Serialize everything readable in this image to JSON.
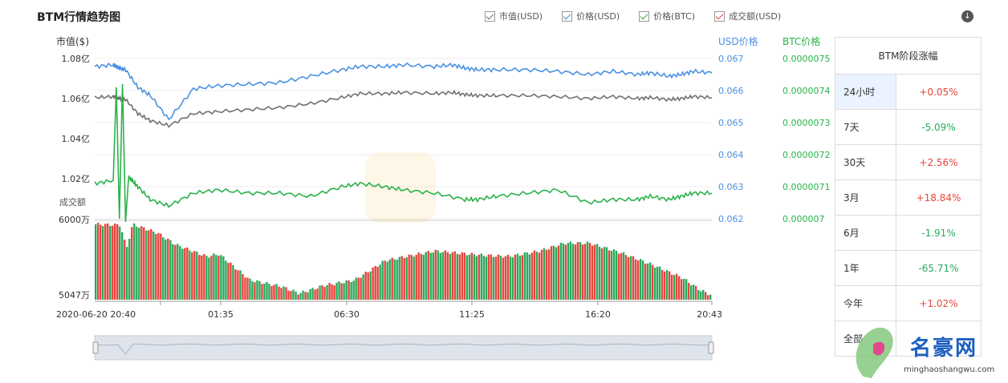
{
  "title": "BTM行情趋势图",
  "legend": [
    {
      "label": "市值(USD)",
      "color": "#707070"
    },
    {
      "label": "价格(USD)",
      "color": "#4a90e2"
    },
    {
      "label": "价格(BTC)",
      "color": "#2ab24a"
    },
    {
      "label": "成交额(USD)",
      "color": "#e7453b"
    }
  ],
  "download_icon": "arrow-down-circle-icon",
  "chart_data": {
    "type": "line",
    "axis_titles": {
      "left": "市值($)",
      "right_usd": "USD价格",
      "right_btc": "BTC价格",
      "volume": "成交额"
    },
    "left_ticks": [
      "1.08亿",
      "1.06亿",
      "1.04亿",
      "1.02亿"
    ],
    "usd_ticks": [
      "0.067",
      "0.066",
      "0.065",
      "0.064",
      "0.063",
      "0.062"
    ],
    "btc_ticks": [
      "0.0000075",
      "0.0000074",
      "0.0000073",
      "0.0000072",
      "0.0000071",
      "0.000007"
    ],
    "volume_ticks": [
      "6000万",
      "5047万"
    ],
    "x_ticks": [
      "2020-06-20 20:40",
      "01:35",
      "06:30",
      "11:25",
      "16:20",
      "20:43"
    ],
    "ylim_usd": [
      0.062,
      0.067
    ],
    "ylim_btc": [
      7e-06,
      7.5e-06
    ],
    "ylim_marketcap_yi": [
      1.01,
      1.08
    ],
    "ylim_volume_wan": [
      5047,
      6000
    ],
    "series": [
      {
        "name": "价格(USD)",
        "color": "#4a90e2",
        "x": [
          0,
          0.03,
          0.035,
          0.04,
          0.05,
          0.07,
          0.09,
          0.12,
          0.16,
          0.2,
          0.25,
          0.3,
          0.35,
          0.4,
          0.43,
          0.47,
          0.5,
          0.55,
          0.58,
          0.6,
          0.62,
          0.65,
          0.7,
          0.75,
          0.8,
          0.84,
          0.88,
          0.9,
          0.93,
          0.95,
          0.97,
          1.0
        ],
        "values": [
          0.06675,
          0.0668,
          0.06675,
          0.0667,
          0.06665,
          0.0661,
          0.06585,
          0.0651,
          0.06605,
          0.06615,
          0.0662,
          0.06625,
          0.06645,
          0.06665,
          0.06675,
          0.06675,
          0.0668,
          0.06675,
          0.0668,
          0.0667,
          0.06665,
          0.06665,
          0.06665,
          0.0666,
          0.0665,
          0.0666,
          0.0665,
          0.06655,
          0.06645,
          0.0665,
          0.0666,
          0.06655
        ]
      },
      {
        "name": "市值(USD)",
        "color": "#707070",
        "x": [
          0,
          0.03,
          0.035,
          0.04,
          0.05,
          0.07,
          0.09,
          0.12,
          0.16,
          0.2,
          0.25,
          0.3,
          0.35,
          0.4,
          0.43,
          0.47,
          0.5,
          0.55,
          0.58,
          0.6,
          0.62,
          0.65,
          0.7,
          0.75,
          0.8,
          0.84,
          0.88,
          0.9,
          0.93,
          0.95,
          0.97,
          1.0
        ],
        "values": [
          1.0605,
          1.061,
          1.0605,
          1.06,
          1.0595,
          1.0525,
          1.049,
          1.0465,
          1.0525,
          1.0535,
          1.0545,
          1.0555,
          1.0575,
          1.0605,
          1.0625,
          1.0625,
          1.063,
          1.0625,
          1.063,
          1.062,
          1.0615,
          1.0615,
          1.0615,
          1.061,
          1.06,
          1.061,
          1.06,
          1.0605,
          1.0595,
          1.06,
          1.061,
          1.0605
        ]
      },
      {
        "name": "价格(BTC)",
        "color": "#2ab24a",
        "x": [
          0,
          0.03,
          0.035,
          0.04,
          0.045,
          0.05,
          0.055,
          0.06,
          0.07,
          0.09,
          0.12,
          0.16,
          0.2,
          0.25,
          0.3,
          0.35,
          0.4,
          0.43,
          0.47,
          0.5,
          0.55,
          0.6,
          0.62,
          0.65,
          0.7,
          0.75,
          0.8,
          0.84,
          0.88,
          0.9,
          0.93,
          0.95,
          0.97,
          1.0
        ],
        "values": [
          7.11e-06,
          7.12e-06,
          7.41e-06,
          7e-06,
          7.42e-06,
          6.99e-06,
          7.13e-06,
          7.12e-06,
          7.1e-06,
          7.06e-06,
          7.04e-06,
          7.08e-06,
          7.09e-06,
          7.08e-06,
          7.08e-06,
          7.07e-06,
          7.1e-06,
          7.11e-06,
          7.1e-06,
          7.09e-06,
          7.08e-06,
          7.06e-06,
          7.06e-06,
          7.07e-06,
          7.08e-06,
          7.09e-06,
          7.05e-06,
          7.06e-06,
          7.06e-06,
          7.07e-06,
          7.06e-06,
          7.07e-06,
          7.08e-06,
          7.08e-06
        ]
      }
    ],
    "volume_series": {
      "name": "成交额(USD)",
      "colors": [
        "#e7453b",
        "#2aa95e"
      ]
    }
  },
  "performance": {
    "header": "BTM阶段涨幅",
    "rows": [
      {
        "period": "24小时",
        "change": "+0.05%",
        "dir": "up"
      },
      {
        "period": "7天",
        "change": "-5.09%",
        "dir": "down"
      },
      {
        "period": "30天",
        "change": "+2.56%",
        "dir": "up"
      },
      {
        "period": "3月",
        "change": "+18.84%",
        "dir": "up"
      },
      {
        "period": "6月",
        "change": "-1.91%",
        "dir": "down"
      },
      {
        "period": "1年",
        "change": "-65.71%",
        "dir": "down"
      },
      {
        "period": "今年",
        "change": "+1.02%",
        "dir": "up"
      },
      {
        "period": "全部",
        "change": "",
        "dir": "up"
      }
    ]
  },
  "watermark": {
    "text": "名豪网",
    "url": "minghaoshangwu.com"
  }
}
